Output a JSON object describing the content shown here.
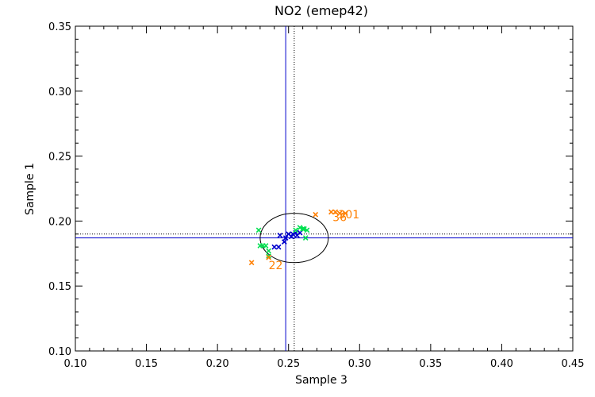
{
  "chart_data": {
    "type": "scatter",
    "title": "NO2 (emep42)",
    "xlabel": "Sample 3",
    "ylabel": "Sample 1",
    "xlim": [
      0.1,
      0.45
    ],
    "ylim": [
      0.1,
      0.35
    ],
    "xticks": [
      0.1,
      0.15,
      0.2,
      0.25,
      0.3,
      0.35,
      0.4,
      0.45
    ],
    "yticks": [
      0.1,
      0.15,
      0.2,
      0.25,
      0.3,
      0.35
    ],
    "xtick_labels": [
      "0.10",
      "0.15",
      "0.20",
      "0.25",
      "0.30",
      "0.35",
      "0.40",
      "0.45"
    ],
    "ytick_labels": [
      "0.10",
      "0.15",
      "0.20",
      "0.25",
      "0.30",
      "0.35"
    ],
    "grid": false,
    "reference_lines": {
      "blue_vertical_x": 0.248,
      "blue_horizontal_y": 0.187,
      "dotted_vertical_x": 0.254,
      "dotted_horizontal_y": 0.19
    },
    "ellipse": {
      "cx": 0.254,
      "cy": 0.187,
      "rx": 0.024,
      "ry": 0.019
    },
    "series": [
      {
        "color": "#0000cc",
        "points": [
          [
            0.24,
            0.18
          ],
          [
            0.243,
            0.18
          ],
          [
            0.244,
            0.189
          ],
          [
            0.247,
            0.184
          ],
          [
            0.248,
            0.187
          ],
          [
            0.25,
            0.19
          ],
          [
            0.253,
            0.19
          ],
          [
            0.255,
            0.191
          ],
          [
            0.256,
            0.189
          ],
          [
            0.258,
            0.191
          ],
          [
            0.252,
            0.188
          ]
        ]
      },
      {
        "color": "#00e050",
        "points": [
          [
            0.229,
            0.193
          ],
          [
            0.23,
            0.181
          ],
          [
            0.232,
            0.181
          ],
          [
            0.234,
            0.181
          ],
          [
            0.236,
            0.177
          ],
          [
            0.236,
            0.173
          ],
          [
            0.255,
            0.193
          ],
          [
            0.258,
            0.195
          ],
          [
            0.26,
            0.194
          ],
          [
            0.261,
            0.194
          ],
          [
            0.262,
            0.187
          ],
          [
            0.263,
            0.193
          ]
        ]
      },
      {
        "color": "#ff7f00",
        "points": [
          [
            0.224,
            0.168
          ],
          [
            0.236,
            0.172
          ],
          [
            0.269,
            0.205
          ],
          [
            0.28,
            0.207
          ],
          [
            0.283,
            0.207
          ],
          [
            0.286,
            0.206
          ],
          [
            0.29,
            0.206
          ]
        ]
      }
    ],
    "annotations": [
      {
        "text": "22",
        "x": 0.236,
        "y": 0.166,
        "color": "#ff7f00"
      },
      {
        "text": "36",
        "x": 0.281,
        "y": 0.203,
        "color": "#ff7f00"
      },
      {
        "text": "301",
        "x": 0.285,
        "y": 0.205,
        "color": "#ff7f00"
      }
    ]
  }
}
